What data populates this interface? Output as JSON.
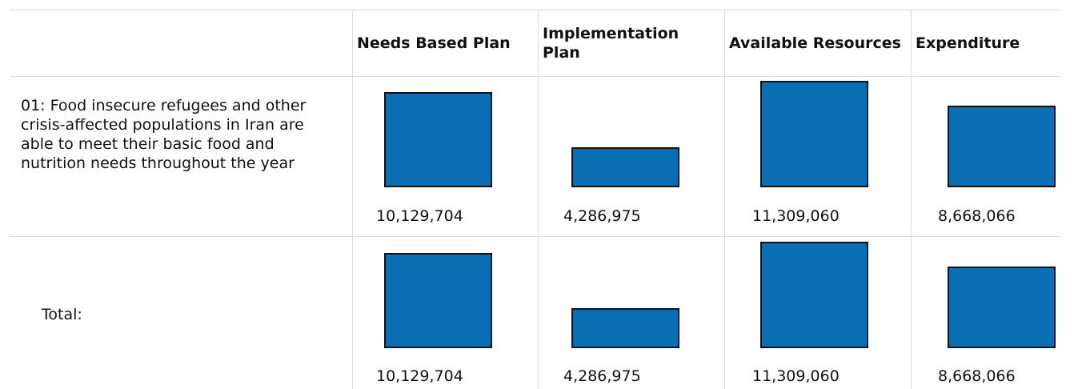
{
  "table": {
    "header": [
      "Needs Based Plan",
      "Implementation Plan",
      "Available Resources",
      "Expenditure"
    ],
    "rows": [
      {
        "label": "01: Food insecure refugees and other crisis-affected populations in Iran are able to meet their basic food and nutrition needs throughout the year",
        "cells": [
          {
            "value": 10129704,
            "label": "10,129,704"
          },
          {
            "value": 4286975,
            "label": "4,286,975"
          },
          {
            "value": 11309060,
            "label": "11,309,060"
          },
          {
            "value": 8668066,
            "label": "8,668,066"
          }
        ]
      },
      {
        "label": "Total:",
        "cells": [
          {
            "value": 10129704,
            "label": "10,129,704"
          },
          {
            "value": 4286975,
            "label": "4,286,975"
          },
          {
            "value": 11309060,
            "label": "11,309,060"
          },
          {
            "value": 8668066,
            "label": "8,668,066"
          }
        ]
      }
    ]
  }
}
